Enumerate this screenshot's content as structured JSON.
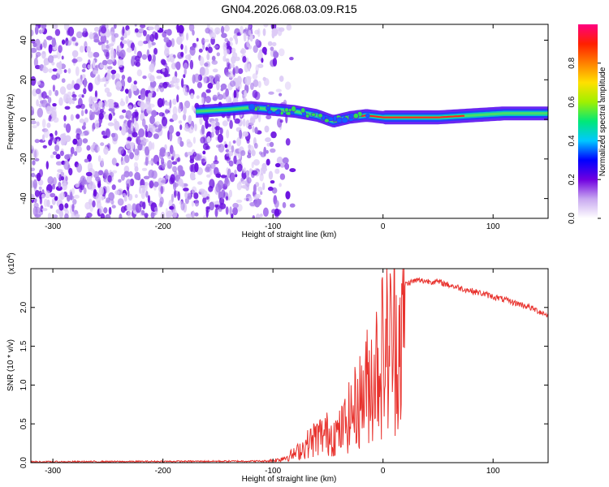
{
  "title": "GN04.2026.068.03.09.R15",
  "chart_data": [
    {
      "type": "heatmap",
      "xlabel": "Height of straight line (km)",
      "ylabel": "Frequency (Hz)",
      "xlim": [
        -320,
        150
      ],
      "ylim": [
        -50,
        48
      ],
      "xticks": [
        -300,
        -200,
        -100,
        0,
        100
      ],
      "yticks": [
        -40,
        -20,
        0,
        20,
        40
      ],
      "colorbar": {
        "label": "Normalized spectral amplitude",
        "range": [
          0,
          1
        ],
        "ticks": [
          "0.0",
          "0.2",
          "0.4",
          "0.6",
          "0.8"
        ],
        "colors": [
          "#ffffff",
          "#c8a8f0",
          "#7000e0",
          "#0000ff",
          "#00c8ff",
          "#00e878",
          "#a0f000",
          "#ffe000",
          "#ff8000",
          "#ff2000",
          "#ff0080"
        ]
      },
      "noise_region_x": [
        -320,
        -120
      ],
      "signal_trace": {
        "x": [
          -170,
          -140,
          -120,
          -100,
          -80,
          -60,
          -45,
          -30,
          -15,
          0,
          20,
          50,
          80,
          110,
          150
        ],
        "y": [
          4,
          5,
          6,
          5,
          4,
          2,
          -1,
          1,
          2,
          1,
          1,
          1,
          2,
          3,
          3
        ]
      }
    },
    {
      "type": "line",
      "xlabel": "Height of straight line (km)",
      "ylabel": "SNR (10 * v/v)",
      "y_multiplier": "(x10",
      "y_multiplier_exp": "4",
      "y_multiplier_close": ")",
      "xlim": [
        -320,
        150
      ],
      "ylim": [
        0,
        2.5
      ],
      "xticks": [
        -300,
        -200,
        -100,
        0,
        100
      ],
      "yticks": [
        "0.0",
        "0.5",
        "1.0",
        "1.5",
        "2.0"
      ],
      "line_color": "#e8322d",
      "envelope": {
        "x": [
          -320,
          -110,
          -95,
          -80,
          -70,
          -60,
          -50,
          -40,
          -30,
          -20,
          -10,
          0,
          10,
          20,
          30,
          50,
          70,
          90,
          110,
          130,
          150
        ],
        "y": [
          0.01,
          0.02,
          0.05,
          0.15,
          0.3,
          0.45,
          0.5,
          0.5,
          0.8,
          1.1,
          1.5,
          1.9,
          2.1,
          2.3,
          2.35,
          2.33,
          2.25,
          2.18,
          2.1,
          2.02,
          1.9
        ]
      }
    }
  ]
}
